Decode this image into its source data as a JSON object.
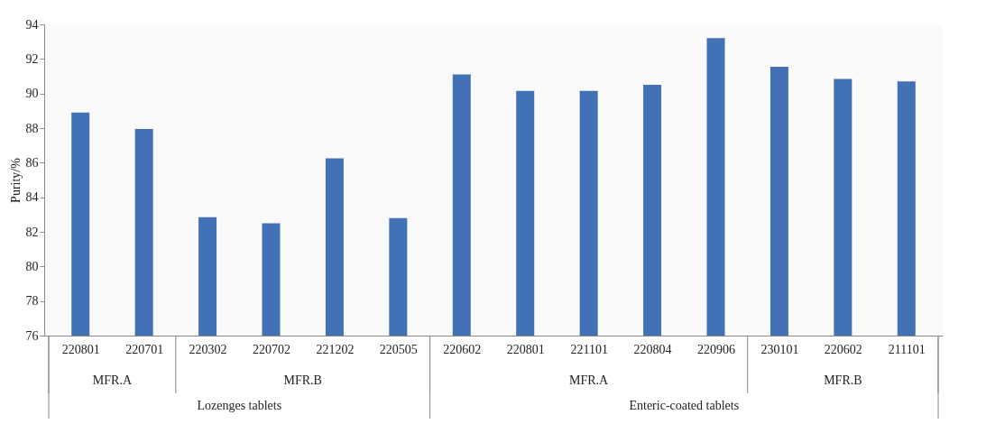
{
  "chart_data": {
    "type": "bar",
    "ylabel": "Purity/%",
    "categories": [
      "220801",
      "220701",
      "220302",
      "220702",
      "221202",
      "220505",
      "220602",
      "220801",
      "221101",
      "220804",
      "220906",
      "230101",
      "220602",
      "211101"
    ],
    "values": [
      88.9,
      87.95,
      82.85,
      82.5,
      86.25,
      82.8,
      91.1,
      90.15,
      90.15,
      90.5,
      93.2,
      91.55,
      90.85,
      90.7
    ],
    "color": "#4271b5",
    "ylim": [
      76,
      94
    ],
    "yticks": [
      76,
      78,
      80,
      82,
      84,
      86,
      88,
      90,
      92,
      94
    ],
    "grid": false,
    "annotations": [
      "MFR.A",
      "MFR.B",
      "MFR.A",
      "MFR.B",
      "Lozenges tablets",
      "Enteric-coated tablets"
    ]
  }
}
